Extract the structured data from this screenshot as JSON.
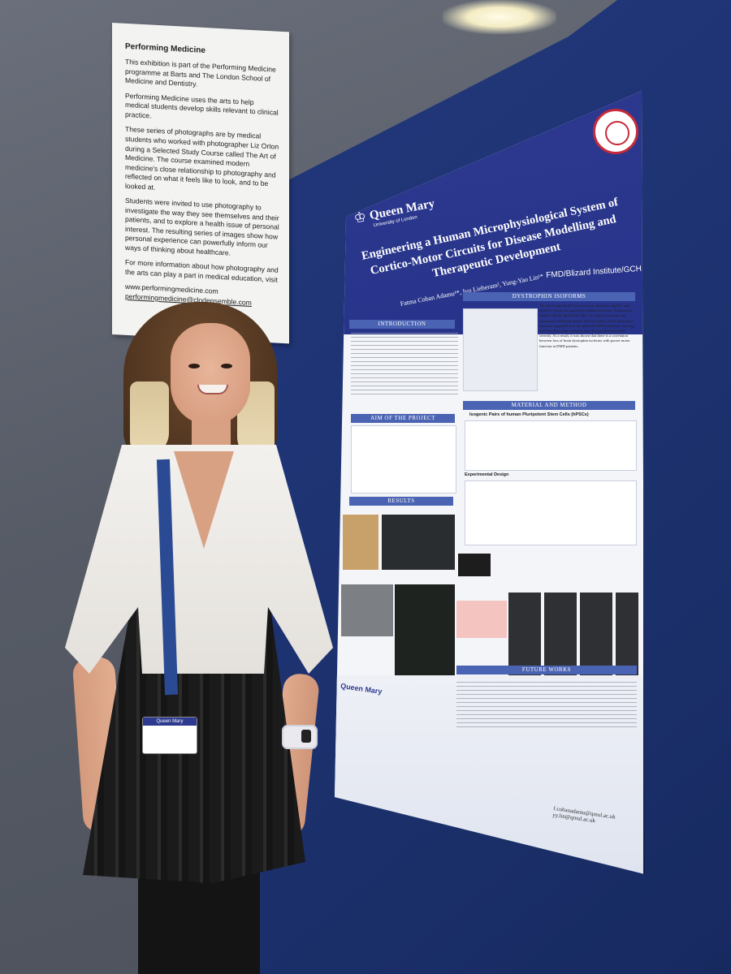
{
  "sign": {
    "title": "Performing Medicine",
    "para1": "This exhibition is part of the Performing Medicine programme at Barts and The London School of Medicine and Dentistry.",
    "para2": "Performing Medicine uses the arts to help medical students develop skills relevant to clinical practice.",
    "para3": "These series of photographs are by medical students who worked with photographer Liz Orton during a Selected Study Course called The Art of Medicine. The course examined modern medicine's close relationship to photography and reflected on what it feels like to look, and to be looked at.",
    "para4": "Students were invited to use photography to investigate the way they see themselves and their patients, and to explore a health issue of personal interest. The resulting series of images show how personal experience can powerfully inform our ways of thinking about healthcare.",
    "para5": "For more information about how photography and the arts can play a part in medical education, visit",
    "link1": "www.performingmedicine.com",
    "link2": "performingmedicine@clodensemble.com"
  },
  "poster": {
    "logo_name": "Queen Mary",
    "logo_sub": "University of London",
    "title": "Engineering a Human Microphysiological System of Cortico-Motor Circuits for Disease Modelling and Therapeutic Development",
    "authors": "Fatma Coban Adamu¹*, Ivo Lieberam², Yung-Yao Lin¹*",
    "institute": "FMD/Blizard Institute/GCH",
    "sections": {
      "introduction": "INTRODUCTION",
      "dystrophin": "DYSTROPHIN ISOFORMS",
      "material": "MATERIAL AND METHOD",
      "aim": "AIM OF THE PROJECT",
      "results": "RESULTS",
      "future": "FUTURE WORKS"
    },
    "dystrophin_text": "The full-length Dp427 has 3 variants, Dp427m, Dp427c and Dp427p, which are expressed in different tissues. Furthermore, Dp260, Dp140, Dp116 and Dp71 are shorter isoforms and expressed in different tissues. Recent studies on the dystrophin isoforms suggested how the different DMD mutations affecting different dystrophin isoforms may display different DMD severity. As a result, it was shown that there is a correlation between loss of brain dystrophin isoforms with poorer motor function in DMD patients.",
    "isogenic_heading": "Isogenic Pairs of human Pluripotent Stem Cells (hPSCs)",
    "experimental_design": "Experimental Design",
    "emails_1": "f.cobanadamu@qmul.ac.uk",
    "emails_2": "yy.lin@qmul.ac.uk",
    "footer_logo": "Queen Mary"
  },
  "badge": {
    "header": "Queen Mary"
  },
  "colors": {
    "board": "#1e3372",
    "poster_header": "#2d3a8f",
    "section_bar": "#4b63b3",
    "wall": "#5f6470"
  }
}
